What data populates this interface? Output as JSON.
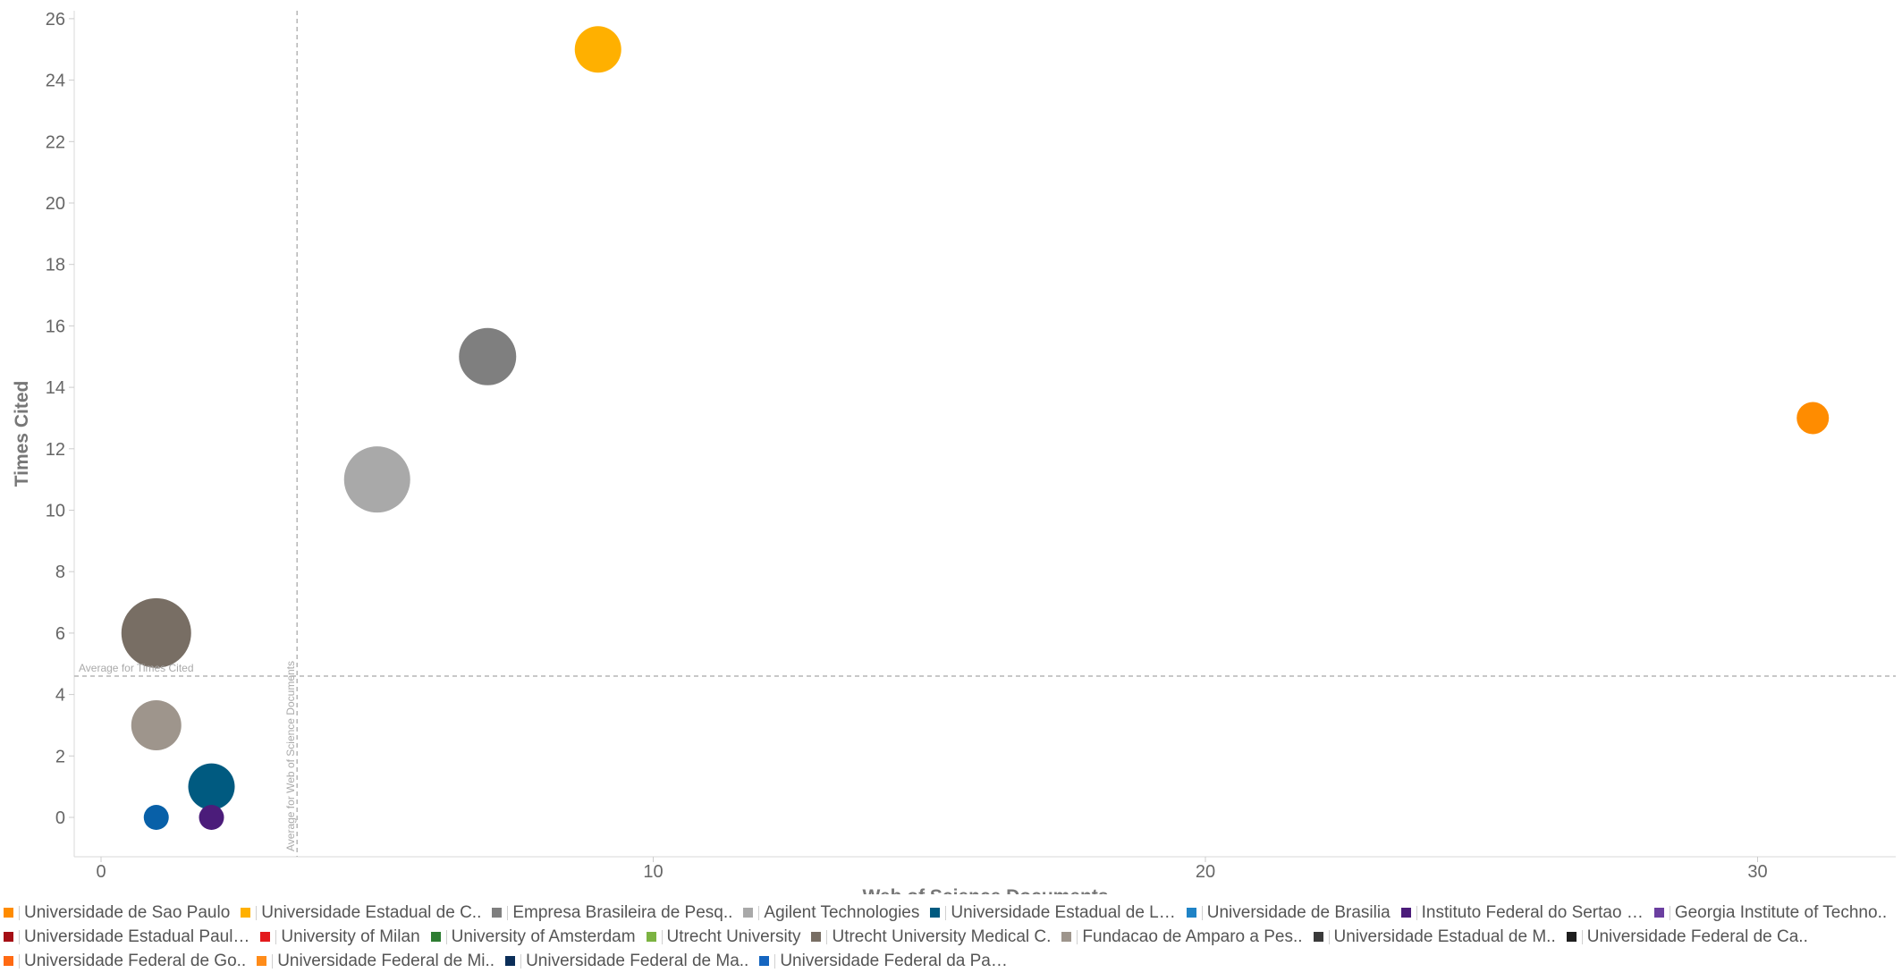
{
  "chart_data": {
    "type": "scatter",
    "xlabel": "Web of Science Documents",
    "ylabel": "Times Cited",
    "xlim": [
      -0.5,
      32.5
    ],
    "ylim": [
      -1.3,
      26.3
    ],
    "xticks": [
      "0",
      "10",
      "20",
      "30"
    ],
    "yticks": [
      "0",
      "2",
      "4",
      "6",
      "8",
      "10",
      "12",
      "14",
      "16",
      "18",
      "20",
      "22",
      "24",
      "26"
    ],
    "reference_lines": {
      "x": {
        "value": 3.55,
        "label": "Average for Web of Science Documents"
      },
      "y": {
        "value": 4.6,
        "label": "Average for Times Cited"
      }
    },
    "points": [
      {
        "x": 9,
        "y": 25,
        "r": 26,
        "color": "#FFB000"
      },
      {
        "x": 7,
        "y": 15,
        "r": 32,
        "color": "#7F7F7F"
      },
      {
        "x": 5,
        "y": 11,
        "r": 37,
        "color": "#A9A9A9"
      },
      {
        "x": 31,
        "y": 13,
        "r": 18,
        "color": "#FF8C00"
      },
      {
        "x": 1,
        "y": 6,
        "r": 39,
        "color": "#786E64"
      },
      {
        "x": 1,
        "y": 3,
        "r": 28,
        "color": "#9E958C"
      },
      {
        "x": 2,
        "y": 1,
        "r": 26,
        "color": "#005A80"
      },
      {
        "x": 1,
        "y": 0,
        "r": 14,
        "color": "#0860A8"
      },
      {
        "x": 2,
        "y": 0,
        "r": 14,
        "color": "#4B1C7A"
      }
    ],
    "legend": [
      [
        {
          "name": "Universidade de Sao Paulo",
          "color": "#FF8C00"
        },
        {
          "name": "Universidade Estadual de C..",
          "color": "#FFB000"
        },
        {
          "name": "Empresa Brasileira de Pesq..",
          "color": "#7F7F7F"
        },
        {
          "name": "Agilent Technologies",
          "color": "#A9A9A9"
        },
        {
          "name": "Universidade Estadual de L…",
          "color": "#005A80"
        },
        {
          "name": "Universidade de Brasilia",
          "color": "#1F83C6"
        },
        {
          "name": "Instituto Federal do Sertao …",
          "color": "#4B1C7A"
        },
        {
          "name": "Georgia Institute of Techno..",
          "color": "#6B3FA0"
        }
      ],
      [
        {
          "name": "Universidade Estadual Paul…",
          "color": "#A50F15"
        },
        {
          "name": "University of Milan",
          "color": "#E31A1C"
        },
        {
          "name": "University of Amsterdam",
          "color": "#2E7D32"
        },
        {
          "name": "Utrecht University",
          "color": "#7CB342"
        },
        {
          "name": "Utrecht University Medical C.",
          "color": "#786E64"
        },
        {
          "name": "Fundacao de Amparo a Pes..",
          "color": "#9E958C"
        },
        {
          "name": "Universidade Estadual de M..",
          "color": "#3A3A3A"
        },
        {
          "name": "Universidade Federal de Ca..",
          "color": "#1E1E1E"
        }
      ],
      [
        {
          "name": "Universidade Federal de Go..",
          "color": "#FF6A13"
        },
        {
          "name": "Universidade Federal de Mi..",
          "color": "#FF8C1A"
        },
        {
          "name": "Universidade Federal de Ma..",
          "color": "#0B2E59"
        },
        {
          "name": "Universidade Federal da Pa…",
          "color": "#1565C0"
        }
      ]
    ]
  }
}
